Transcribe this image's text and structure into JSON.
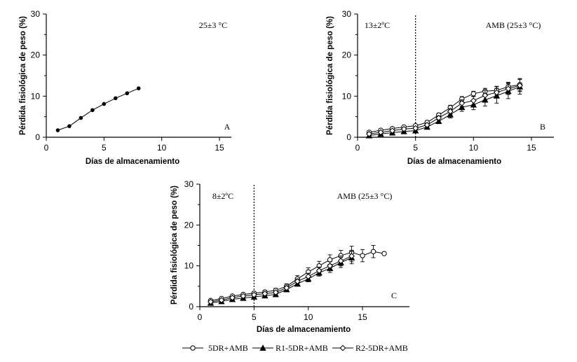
{
  "legend": {
    "items": [
      {
        "label": "5DR+AMB",
        "marker": "circle-open"
      },
      {
        "label": "R1-5DR+AMB",
        "marker": "triangle-filled"
      },
      {
        "label": "R2-5DR+AMB",
        "marker": "diamond-open"
      }
    ]
  },
  "chart_data": [
    {
      "type": "line",
      "panel_label": "A",
      "condition_label": "25±3 °C",
      "xlabel": "Días de almacenamiento",
      "ylabel": "Pérdida fisiológica de peso (%)",
      "xlim": [
        0,
        15
      ],
      "ylim": [
        0,
        30
      ],
      "xticks": [
        0,
        5,
        10,
        15
      ],
      "yticks": [
        0,
        10,
        20,
        30
      ],
      "storage_change_day": null,
      "series": [
        {
          "marker": "dot-filled",
          "x": [
            1,
            2,
            3,
            4,
            5,
            6,
            7,
            8
          ],
          "y": [
            1.7,
            2.7,
            4.7,
            6.6,
            8.1,
            9.5,
            10.7,
            11.9
          ],
          "err": [
            0,
            0,
            0,
            0,
            0,
            0,
            0,
            0
          ]
        }
      ]
    },
    {
      "type": "line",
      "panel_label": "B",
      "condition_label": "13±2ºC",
      "condition_label_2": "AMB (25±3 °C)",
      "xlabel": "Días de almacenamiento",
      "ylabel": "Pérdida fisiológica de peso (%)",
      "xlim": [
        0,
        15
      ],
      "ylim": [
        0,
        30
      ],
      "xticks": [
        0,
        5,
        10,
        15
      ],
      "yticks": [
        0,
        10,
        20,
        30
      ],
      "storage_change_day": 5,
      "series": [
        {
          "marker": "circle-open",
          "x": [
            1,
            2,
            3,
            4,
            5,
            6,
            7,
            8,
            9,
            10,
            11,
            12,
            13,
            14
          ],
          "y": [
            1.2,
            1.7,
            2.1,
            2.5,
            2.8,
            3.6,
            5.4,
            7.2,
            9.3,
            10.6,
            11.2,
            11.4,
            12.3,
            12.8
          ],
          "err": [
            0.3,
            0.3,
            0.3,
            0.3,
            0.3,
            0.4,
            0.5,
            0.6,
            0.6,
            0.6,
            0.7,
            1.0,
            1.1,
            1.5
          ]
        },
        {
          "marker": "triangle-filled",
          "x": [
            1,
            2,
            3,
            4,
            5,
            6,
            7,
            8,
            9,
            10,
            11,
            12,
            13,
            14
          ],
          "y": [
            0.4,
            0.8,
            1.1,
            1.4,
            1.6,
            2.5,
            3.9,
            5.5,
            7.3,
            7.9,
            9.1,
            10.1,
            11.2,
            12.3
          ],
          "err": [
            0.2,
            0.2,
            0.3,
            0.3,
            0.3,
            0.4,
            0.6,
            0.8,
            1.0,
            1.2,
            1.5,
            1.8,
            1.8,
            1.8
          ]
        },
        {
          "marker": "diamond-open",
          "x": [
            1,
            2,
            3,
            4,
            5,
            6,
            7,
            8,
            9,
            10,
            11,
            12,
            13,
            14
          ],
          "y": [
            0.8,
            1.2,
            1.6,
            2.0,
            2.2,
            3.0,
            4.7,
            6.3,
            8.3,
            8.9,
            10.2,
            10.9,
            11.8,
            12.6
          ],
          "err": [
            0.2,
            0.3,
            0.3,
            0.3,
            0.3,
            0.4,
            0.5,
            0.7,
            0.8,
            1.0,
            1.2,
            1.4,
            1.4,
            1.5
          ]
        }
      ]
    },
    {
      "type": "line",
      "panel_label": "C",
      "condition_label": "8±2ºC",
      "condition_label_2": "AMB (25±3 °C)",
      "xlabel": "Días de almacenamiento",
      "ylabel": "Pérdida fisiológica de peso (%)",
      "xlim": [
        0,
        17
      ],
      "ylim": [
        0,
        30
      ],
      "xticks": [
        0,
        5,
        10,
        15
      ],
      "yticks": [
        0,
        10,
        20,
        30
      ],
      "storage_change_day": 5,
      "series": [
        {
          "marker": "circle-open",
          "x": [
            1,
            2,
            3,
            4,
            5,
            6,
            7,
            8,
            9,
            10,
            11,
            12,
            13,
            14,
            15,
            16,
            17
          ],
          "y": [
            1.5,
            2.0,
            2.6,
            3.0,
            3.3,
            3.6,
            4.0,
            5.0,
            6.8,
            8.5,
            10.0,
            11.5,
            12.5,
            13.3,
            12.5,
            13.5,
            13.0
          ],
          "err": [
            0.3,
            0.3,
            0.3,
            0.3,
            0.4,
            0.4,
            0.5,
            0.6,
            0.8,
            1.0,
            1.1,
            1.2,
            1.3,
            1.5,
            1.5,
            1.5,
            0.3
          ]
        },
        {
          "marker": "triangle-filled",
          "x": [
            1,
            2,
            3,
            4,
            5,
            6,
            7,
            8,
            9,
            10,
            11,
            12,
            13,
            14
          ],
          "y": [
            0.9,
            1.3,
            1.8,
            2.1,
            2.4,
            2.7,
            3.0,
            4.2,
            5.6,
            6.8,
            8.3,
            9.4,
            10.8,
            12.0
          ],
          "err": [
            0.2,
            0.2,
            0.3,
            0.3,
            0.3,
            0.3,
            0.4,
            0.5,
            0.6,
            0.7,
            0.8,
            1.0,
            1.2,
            1.5
          ]
        },
        {
          "marker": "diamond-open",
          "x": [
            1,
            2,
            3,
            4,
            5,
            6,
            7,
            8,
            9,
            10,
            11,
            12,
            13,
            14
          ],
          "y": [
            1.2,
            1.6,
            2.2,
            2.6,
            2.9,
            3.2,
            3.5,
            4.6,
            6.2,
            7.4,
            8.8,
            10.0,
            11.2,
            12.4
          ],
          "err": [
            0.2,
            0.3,
            0.3,
            0.3,
            0.3,
            0.4,
            0.4,
            0.5,
            0.6,
            0.8,
            0.9,
            1.0,
            1.2,
            1.4
          ]
        }
      ]
    }
  ]
}
